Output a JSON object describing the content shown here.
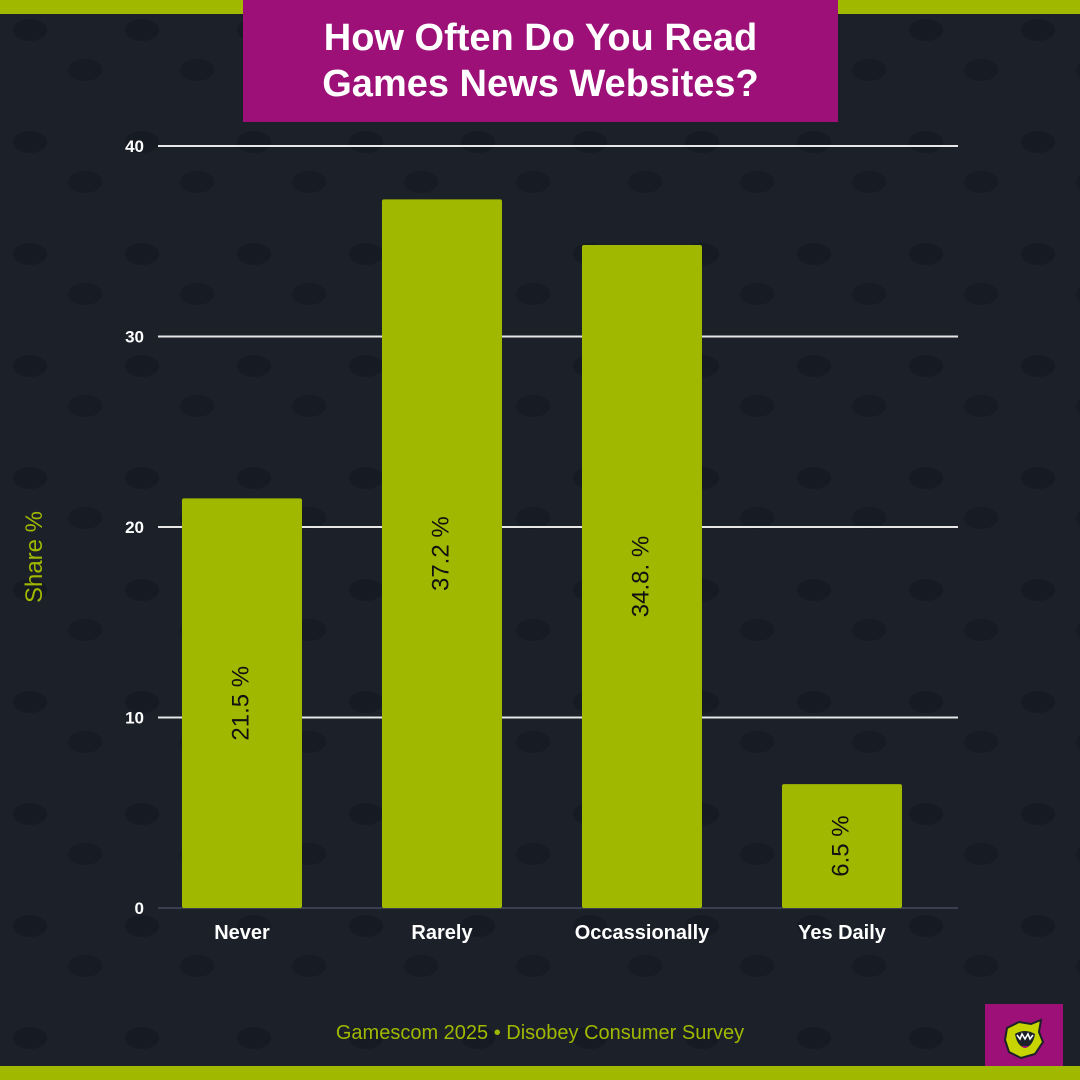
{
  "title": "How Often Do You Read Games News Websites?",
  "footer": "Gamescom 2025 • Disobey Consumer Survey",
  "colors": {
    "background": "#1b2029",
    "bar": "#a0b800",
    "title_box": "#9c1078",
    "accent": "#a0b800"
  },
  "logo": {
    "icon": "screaming-mouth-icon"
  },
  "chart_data": {
    "type": "bar",
    "categories": [
      "Never",
      "Rarely",
      "Occassionally",
      "Yes Daily"
    ],
    "values": [
      21.5,
      37.2,
      34.8,
      6.5
    ],
    "value_labels": [
      "21.5 %",
      "37.2 %",
      "34.8. %",
      "6.5 %"
    ],
    "title": "How Often Do You Read Games News Websites?",
    "xlabel": "",
    "ylabel": "Share %",
    "ylim": [
      0,
      40
    ],
    "yticks": [
      0,
      10,
      20,
      30,
      40
    ],
    "grid": true,
    "legend": "none"
  }
}
